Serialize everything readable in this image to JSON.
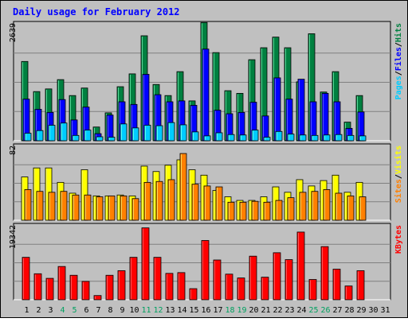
{
  "chart_data": {
    "type": "bar",
    "title": "Daily usage for February 2012",
    "categories": [
      "1",
      "2",
      "3",
      "4",
      "5",
      "6",
      "7",
      "8",
      "9",
      "10",
      "11",
      "12",
      "13",
      "14",
      "15",
      "16",
      "17",
      "18",
      "19",
      "20",
      "21",
      "22",
      "23",
      "24",
      "25",
      "26",
      "27",
      "28",
      "29",
      "30",
      "31"
    ],
    "weekend_days": [
      4,
      5,
      11,
      12,
      18,
      19,
      25,
      26
    ],
    "panels": [
      {
        "id": "pages-files-hits",
        "ymax_label": "2639",
        "ymax": 2639,
        "ylabel_parts": [
          "Pages",
          "Files",
          "Hits"
        ],
        "series": [
          {
            "name": "Hits",
            "color": "#008040",
            "values": [
              1790,
              1110,
              1170,
              1380,
              1020,
              1190,
              310,
              630,
              1220,
              1510,
              2370,
              1270,
              1020,
              1560,
              900,
              2670,
              1990,
              1130,
              1070,
              1830,
              2100,
              2340,
              2100,
              1330,
              2416,
              1100,
              1560,
              420,
              1020,
              0,
              0
            ]
          },
          {
            "name": "Files",
            "color": "#0000ff",
            "values": [
              940,
              710,
              640,
              930,
              470,
              760,
              160,
              580,
              880,
              820,
              1500,
              1040,
              880,
              900,
              800,
              2070,
              690,
              610,
              640,
              870,
              560,
              1420,
              940,
              1390,
              880,
              1070,
              880,
              280,
              650,
              0,
              0
            ]
          },
          {
            "name": "Pages",
            "color": "#00ccff",
            "values": [
              170,
              230,
              350,
              400,
              120,
              240,
              90,
              80,
              380,
              290,
              350,
              340,
              410,
              360,
              200,
              110,
              180,
              140,
              130,
              240,
              80,
              210,
              150,
              130,
              120,
              130,
              140,
              120,
              110,
              0,
              0
            ]
          }
        ]
      },
      {
        "id": "sites-visits",
        "ymax_label": "82",
        "ymax": 82,
        "ylabel_parts": [
          "Sites",
          "Visits"
        ],
        "series": [
          {
            "name": "Visits",
            "color": "#ffff00",
            "values": [
              48,
              58,
              58,
              42,
              30,
              56,
              27,
              27,
              28,
              27,
              60,
              54,
              61,
              67,
              56,
              50,
              33,
              26,
              22,
              22,
              26,
              37,
              31,
              45,
              38,
              44,
              50,
              31,
              42,
              0,
              0
            ]
          },
          {
            "name": "Sites",
            "color": "#ff8000",
            "values": [
              34,
              32,
              31,
              32,
              28,
              28,
              26,
              27,
              27,
              24,
              42,
              43,
              45,
              74,
              40,
              38,
              37,
              20,
              20,
              21,
              20,
              22,
              25,
              31,
              32,
              34,
              30,
              27,
              26,
              0,
              0
            ]
          }
        ]
      },
      {
        "id": "kbytes",
        "ymax_label": "19342",
        "ymax": 19342,
        "ylabel_parts": [
          "KBytes"
        ],
        "series": [
          {
            "name": "KBytes",
            "color": "#ff0000",
            "values": [
              11100,
              6800,
              5600,
              8700,
              6400,
              4800,
              1100,
              6400,
              7600,
              11100,
              18800,
              11100,
              6900,
              7100,
              2900,
              15500,
              10400,
              6700,
              5700,
              11400,
              5900,
              12300,
              10500,
              17700,
              5300,
              13900,
              8000,
              3600,
              7600,
              0,
              0
            ]
          }
        ]
      }
    ]
  }
}
